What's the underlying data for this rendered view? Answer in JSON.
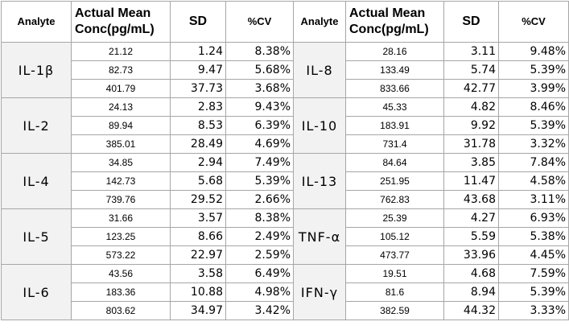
{
  "headers": {
    "analyte": "Analyte",
    "conc_line1": "Actual Mean",
    "conc_line2": "Conc(pg/mL)",
    "sd": "SD",
    "cv": "%CV"
  },
  "rows": [
    {
      "left": {
        "analyte": "IL-1β",
        "levels": [
          {
            "conc": "21.12",
            "sd": "1.24",
            "cv": "8.38%"
          },
          {
            "conc": "82.73",
            "sd": "9.47",
            "cv": "5.68%"
          },
          {
            "conc": "401.79",
            "sd": "37.73",
            "cv": "3.68%"
          }
        ]
      },
      "right": {
        "analyte": "IL-8",
        "levels": [
          {
            "conc": "28.16",
            "sd": "3.11",
            "cv": "9.48%"
          },
          {
            "conc": "133.49",
            "sd": "5.74",
            "cv": "5.39%"
          },
          {
            "conc": "833.66",
            "sd": "42.77",
            "cv": "3.99%"
          }
        ]
      }
    },
    {
      "left": {
        "analyte": "IL-2",
        "levels": [
          {
            "conc": "24.13",
            "sd": "2.83",
            "cv": "9.43%"
          },
          {
            "conc": "89.94",
            "sd": "8.53",
            "cv": "6.39%"
          },
          {
            "conc": "385.01",
            "sd": "28.49",
            "cv": "4.69%"
          }
        ]
      },
      "right": {
        "analyte": "IL-10",
        "levels": [
          {
            "conc": "45.33",
            "sd": "4.82",
            "cv": "8.46%"
          },
          {
            "conc": "183.91",
            "sd": "9.92",
            "cv": "5.39%"
          },
          {
            "conc": "731.4",
            "sd": "31.78",
            "cv": "3.32%"
          }
        ]
      }
    },
    {
      "left": {
        "analyte": "IL-4",
        "levels": [
          {
            "conc": "34.85",
            "sd": "2.94",
            "cv": "7.49%"
          },
          {
            "conc": "142.73",
            "sd": "5.68",
            "cv": "5.39%"
          },
          {
            "conc": "739.76",
            "sd": "29.52",
            "cv": "2.66%"
          }
        ]
      },
      "right": {
        "analyte": "IL-13",
        "levels": [
          {
            "conc": "84.64",
            "sd": "3.85",
            "cv": "7.84%"
          },
          {
            "conc": "251.95",
            "sd": "11.47",
            "cv": "4.58%"
          },
          {
            "conc": "762.83",
            "sd": "43.68",
            "cv": "3.11%"
          }
        ]
      }
    },
    {
      "left": {
        "analyte": "IL-5",
        "levels": [
          {
            "conc": "31.66",
            "sd": "3.57",
            "cv": "8.38%"
          },
          {
            "conc": "123.25",
            "sd": "8.66",
            "cv": "2.49%"
          },
          {
            "conc": "573.22",
            "sd": "22.97",
            "cv": "2.59%"
          }
        ]
      },
      "right": {
        "analyte": "TNF-α",
        "levels": [
          {
            "conc": "25.39",
            "sd": "4.27",
            "cv": "6.93%"
          },
          {
            "conc": "105.12",
            "sd": "5.59",
            "cv": "5.38%"
          },
          {
            "conc": "473.77",
            "sd": "33.96",
            "cv": "4.45%"
          }
        ]
      }
    },
    {
      "left": {
        "analyte": "IL-6",
        "levels": [
          {
            "conc": "43.56",
            "sd": "3.58",
            "cv": "6.49%"
          },
          {
            "conc": "183.36",
            "sd": "10.88",
            "cv": "4.98%"
          },
          {
            "conc": "803.62",
            "sd": "34.97",
            "cv": "3.42%"
          }
        ]
      },
      "right": {
        "analyte": "IFN-γ",
        "levels": [
          {
            "conc": "19.51",
            "sd": "4.68",
            "cv": "7.59%"
          },
          {
            "conc": "81.6",
            "sd": "8.94",
            "cv": "5.39%"
          },
          {
            "conc": "382.59",
            "sd": "44.32",
            "cv": "3.33%"
          }
        ]
      }
    }
  ]
}
